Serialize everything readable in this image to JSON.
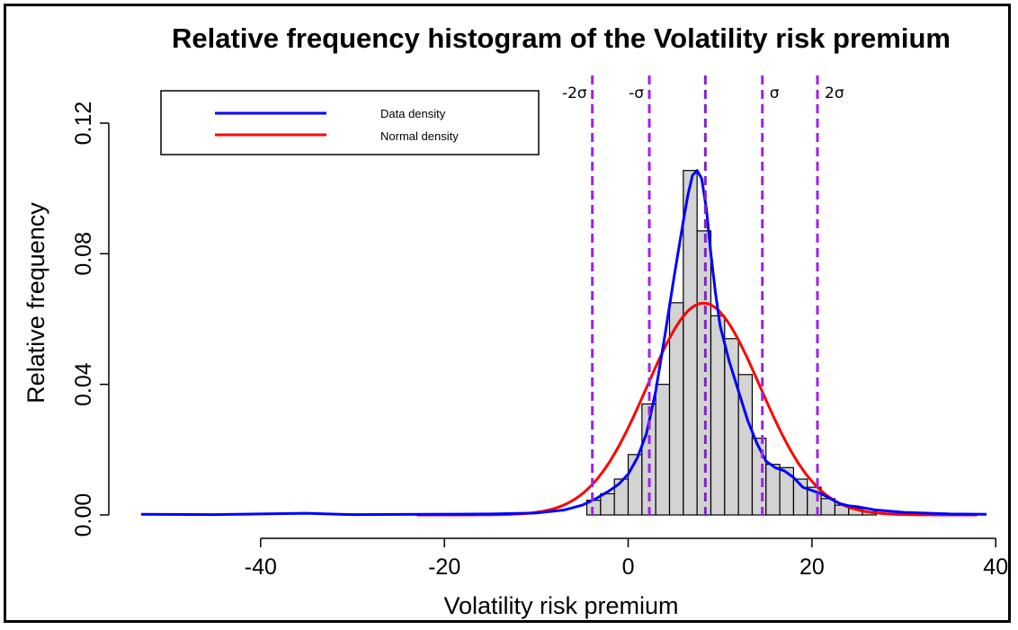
{
  "chart_data": {
    "type": "bar",
    "title": "Relative frequency histogram of the Volatility risk premium",
    "xlabel": "Volatility risk premium",
    "ylabel": "Relative frequency",
    "xlim": [
      -53,
      39
    ],
    "ylim": [
      0,
      0.12
    ],
    "x_ticks": [
      -40,
      -20,
      0,
      20,
      40
    ],
    "x_tick_labels": [
      "-40",
      "-20",
      "0",
      "20",
      "40"
    ],
    "y_ticks": [
      0,
      0.04,
      0.08,
      0.12
    ],
    "y_tick_labels": [
      "0.00",
      "0.04",
      "0.08",
      "0.12"
    ],
    "bin_width": 1.5,
    "bins": [
      {
        "x0": -4.5,
        "x1": -3,
        "value": 0.0045
      },
      {
        "x0": -3,
        "x1": -1.5,
        "value": 0.0065
      },
      {
        "x0": -1.5,
        "x1": 0,
        "value": 0.011
      },
      {
        "x0": 0,
        "x1": 1.5,
        "value": 0.0185
      },
      {
        "x0": 1.5,
        "x1": 3,
        "value": 0.034
      },
      {
        "x0": 3,
        "x1": 4.5,
        "value": 0.04
      },
      {
        "x0": 4.5,
        "x1": 6,
        "value": 0.065
      },
      {
        "x0": 6,
        "x1": 7.5,
        "value": 0.1055
      },
      {
        "x0": 7.5,
        "x1": 9,
        "value": 0.087
      },
      {
        "x0": 9,
        "x1": 10.5,
        "value": 0.061
      },
      {
        "x0": 10.5,
        "x1": 12,
        "value": 0.054
      },
      {
        "x0": 12,
        "x1": 13.5,
        "value": 0.043
      },
      {
        "x0": 13.5,
        "x1": 15,
        "value": 0.0235
      },
      {
        "x0": 15,
        "x1": 16.5,
        "value": 0.0155
      },
      {
        "x0": 16.5,
        "x1": 18,
        "value": 0.0145
      },
      {
        "x0": 18,
        "x1": 19.5,
        "value": 0.011
      },
      {
        "x0": 19.5,
        "x1": 21,
        "value": 0.0085
      },
      {
        "x0": 21,
        "x1": 22.5,
        "value": 0.005
      },
      {
        "x0": 22.5,
        "x1": 24,
        "value": 0.003
      },
      {
        "x0": 24,
        "x1": 25.5,
        "value": 0.002
      },
      {
        "x0": 25.5,
        "x1": 27,
        "value": 0.001
      }
    ],
    "series": [
      {
        "name": "Data density",
        "color": "#0000ff",
        "x": [
          -53,
          -45,
          -35,
          -30,
          -22,
          -15,
          -10,
          -7,
          -5,
          -3.5,
          -2,
          -1,
          0,
          1,
          2,
          3,
          4,
          5,
          6,
          6.5,
          7,
          7.5,
          8,
          8.5,
          9,
          9.5,
          10,
          11,
          12,
          13,
          14,
          15,
          16,
          17,
          18,
          19,
          20,
          21,
          22,
          23,
          24,
          25,
          27,
          30,
          35,
          39
        ],
        "y": [
          0.0002,
          0.0001,
          0.0005,
          0.0001,
          0.0002,
          0.0003,
          0.0006,
          0.0015,
          0.003,
          0.005,
          0.0075,
          0.0095,
          0.0125,
          0.0175,
          0.025,
          0.038,
          0.055,
          0.073,
          0.09,
          0.098,
          0.104,
          0.1055,
          0.103,
          0.094,
          0.08,
          0.068,
          0.058,
          0.047,
          0.038,
          0.029,
          0.022,
          0.0165,
          0.0145,
          0.0135,
          0.0115,
          0.0085,
          0.0075,
          0.0065,
          0.005,
          0.0035,
          0.0028,
          0.0025,
          0.0015,
          0.0008,
          0.0003,
          0.0002
        ]
      },
      {
        "name": "Normal density",
        "color": "#ff0000",
        "mean": 8.2,
        "sd": 6.15,
        "x_range": [
          -23,
          38
        ]
      }
    ],
    "reference_lines": [
      {
        "label": "-2σ",
        "x": -3.9
      },
      {
        "label": "-σ",
        "x": 2.3
      },
      {
        "label": "",
        "x": 8.4
      },
      {
        "label": "σ",
        "x": 14.6
      },
      {
        "label": "2σ",
        "x": 20.6
      }
    ],
    "legend_position": "top-left",
    "colors": {
      "bar_fill": "#d3d3d3",
      "bar_stroke": "#000000",
      "reference_line": "#a020f0",
      "center_line": "#7b28c8"
    }
  }
}
